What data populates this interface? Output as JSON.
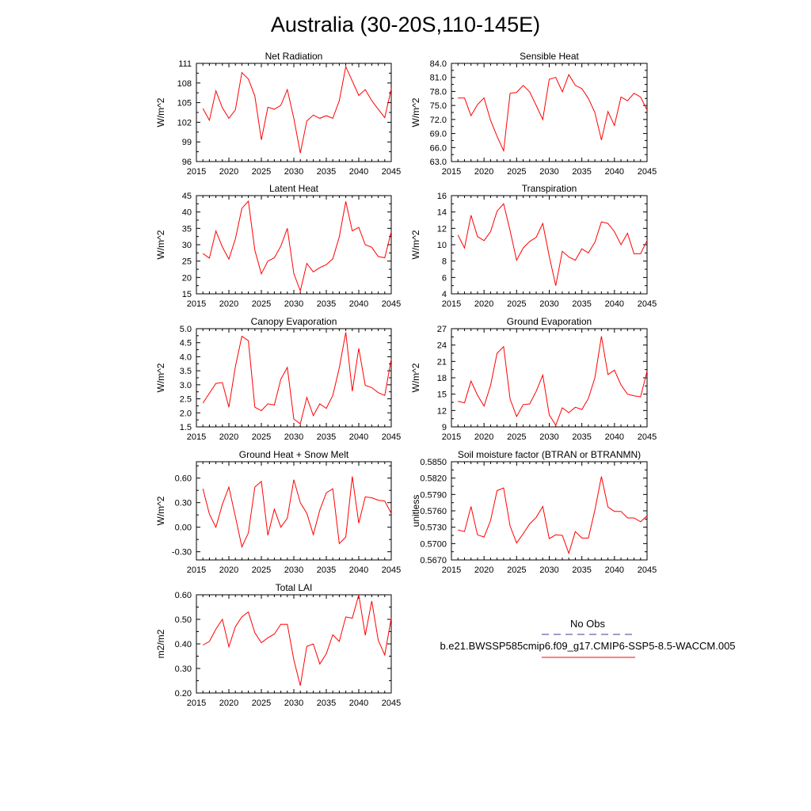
{
  "figure": {
    "title": "Australia (30-20S,110-145E)"
  },
  "legend": {
    "items": [
      {
        "label": "No Obs",
        "color": "#3c3c8c",
        "style": "dashed"
      },
      {
        "label": "b.e21.BWSSP585cmip6.f09_g17.CMIP6-SSP5-8.5-WACCM.005",
        "color": "#ff0000",
        "style": "solid"
      }
    ]
  },
  "chart_data": [
    {
      "type": "line",
      "title": "Net Radiation",
      "ylabel": "W/m^2",
      "xlim": [
        2015,
        2045
      ],
      "ylim": [
        96,
        111
      ],
      "x_ticks": [
        2015,
        2020,
        2025,
        2030,
        2035,
        2040,
        2045
      ],
      "y_ticks": [
        96,
        99,
        102,
        105,
        108,
        111
      ],
      "y_tick_labels": [
        "96",
        "99",
        "102",
        "105",
        "108",
        "111"
      ],
      "series": [
        {
          "color": "#ff0000",
          "x": [
            2016,
            2017,
            2018,
            2019,
            2020,
            2021,
            2022,
            2023,
            2024,
            2025,
            2026,
            2027,
            2028,
            2029,
            2030,
            2031,
            2032,
            2033,
            2034,
            2035,
            2036,
            2037,
            2038,
            2039,
            2040,
            2041,
            2042,
            2043,
            2044,
            2045
          ],
          "values": [
            104.1,
            102.3,
            106.8,
            104.2,
            102.6,
            103.9,
            109.6,
            108.6,
            106.0,
            99.3,
            104.3,
            104.0,
            104.6,
            107.0,
            102.6,
            97.3,
            102.2,
            103.1,
            102.6,
            103.0,
            102.6,
            105.3,
            110.5,
            108.3,
            106.1,
            107.0,
            105.3,
            104.0,
            102.7,
            107.1
          ]
        }
      ]
    },
    {
      "type": "line",
      "title": "Sensible Heat",
      "ylabel": "W/m^2",
      "xlim": [
        2015,
        2045
      ],
      "ylim": [
        63,
        84
      ],
      "x_ticks": [
        2015,
        2020,
        2025,
        2030,
        2035,
        2040,
        2045
      ],
      "y_ticks": [
        63,
        66,
        69,
        72,
        75,
        78,
        81,
        84
      ],
      "y_tick_labels": [
        "63.0",
        "66.0",
        "69.0",
        "72.0",
        "75.0",
        "78.0",
        "81.0",
        "84.0"
      ],
      "series": [
        {
          "color": "#ff0000",
          "x": [
            2016,
            2017,
            2018,
            2019,
            2020,
            2021,
            2022,
            2023,
            2024,
            2025,
            2026,
            2027,
            2028,
            2029,
            2030,
            2031,
            2032,
            2033,
            2034,
            2035,
            2036,
            2037,
            2038,
            2039,
            2040,
            2041,
            2042,
            2043,
            2044,
            2045
          ],
          "values": [
            76.6,
            76.6,
            72.8,
            75.2,
            76.6,
            71.8,
            68.4,
            65.3,
            77.6,
            77.8,
            79.3,
            77.9,
            75.0,
            72.0,
            80.6,
            81.0,
            77.9,
            81.6,
            79.3,
            78.6,
            76.5,
            73.5,
            67.6,
            73.7,
            70.7,
            76.8,
            76.0,
            77.6,
            76.8,
            74.0
          ]
        }
      ]
    },
    {
      "type": "line",
      "title": "Latent Heat",
      "ylabel": "W/m^2",
      "xlim": [
        2015,
        2045
      ],
      "ylim": [
        15,
        45
      ],
      "x_ticks": [
        2015,
        2020,
        2025,
        2030,
        2035,
        2040,
        2045
      ],
      "y_ticks": [
        15,
        20,
        25,
        30,
        35,
        40,
        45
      ],
      "y_tick_labels": [
        "15",
        "20",
        "25",
        "30",
        "35",
        "40",
        "45"
      ],
      "series": [
        {
          "color": "#ff0000",
          "x": [
            2016,
            2017,
            2018,
            2019,
            2020,
            2021,
            2022,
            2023,
            2024,
            2025,
            2026,
            2027,
            2028,
            2029,
            2030,
            2031,
            2032,
            2033,
            2034,
            2035,
            2036,
            2037,
            2038,
            2039,
            2040,
            2041,
            2042,
            2043,
            2044,
            2045
          ],
          "values": [
            27.3,
            25.9,
            34.2,
            29.3,
            25.6,
            31.8,
            41.1,
            43.3,
            28.3,
            21.1,
            25.0,
            26.0,
            29.6,
            35.0,
            21.2,
            15.9,
            24.3,
            21.7,
            23.0,
            23.9,
            25.7,
            32.4,
            43.2,
            34.2,
            35.3,
            30.0,
            29.2,
            26.4,
            26.0,
            34.0
          ]
        }
      ]
    },
    {
      "type": "line",
      "title": "Transpiration",
      "ylabel": "W/m^2",
      "xlim": [
        2015,
        2045
      ],
      "ylim": [
        4,
        16
      ],
      "x_ticks": [
        2015,
        2020,
        2025,
        2030,
        2035,
        2040,
        2045
      ],
      "y_ticks": [
        4,
        6,
        8,
        10,
        12,
        14,
        16
      ],
      "y_tick_labels": [
        "4",
        "6",
        "8",
        "10",
        "12",
        "14",
        "16"
      ],
      "series": [
        {
          "color": "#ff0000",
          "x": [
            2016,
            2017,
            2018,
            2019,
            2020,
            2021,
            2022,
            2023,
            2024,
            2025,
            2026,
            2027,
            2028,
            2029,
            2030,
            2031,
            2032,
            2033,
            2034,
            2035,
            2036,
            2037,
            2038,
            2039,
            2040,
            2041,
            2042,
            2043,
            2044,
            2045
          ],
          "values": [
            11.2,
            9.6,
            13.6,
            11.0,
            10.5,
            11.6,
            14.1,
            15.0,
            11.7,
            8.1,
            9.6,
            10.4,
            10.9,
            12.6,
            8.6,
            5.0,
            9.2,
            8.5,
            8.1,
            9.5,
            9.0,
            10.3,
            12.8,
            12.6,
            11.6,
            10.0,
            11.4,
            8.9,
            8.9,
            10.5
          ]
        }
      ]
    },
    {
      "type": "line",
      "title": "Canopy Evaporation",
      "ylabel": "W/m^2",
      "xlim": [
        2015,
        2045
      ],
      "ylim": [
        1.5,
        5.0
      ],
      "x_ticks": [
        2015,
        2020,
        2025,
        2030,
        2035,
        2040,
        2045
      ],
      "y_ticks": [
        1.5,
        2.0,
        2.5,
        3.0,
        3.5,
        4.0,
        4.5,
        5.0
      ],
      "y_tick_labels": [
        "1.5",
        "2.0",
        "2.5",
        "3.0",
        "3.5",
        "4.0",
        "4.5",
        "5.0"
      ],
      "series": [
        {
          "color": "#ff0000",
          "x": [
            2016,
            2017,
            2018,
            2019,
            2020,
            2021,
            2022,
            2023,
            2024,
            2025,
            2026,
            2027,
            2028,
            2029,
            2030,
            2031,
            2032,
            2033,
            2034,
            2035,
            2036,
            2037,
            2038,
            2039,
            2040,
            2041,
            2042,
            2043,
            2044,
            2045
          ],
          "values": [
            2.35,
            2.7,
            3.05,
            3.08,
            2.2,
            3.65,
            4.73,
            4.57,
            2.2,
            2.08,
            2.32,
            2.28,
            3.2,
            3.62,
            1.78,
            1.61,
            2.55,
            1.9,
            2.32,
            2.16,
            2.62,
            3.6,
            4.87,
            2.77,
            4.3,
            2.98,
            2.9,
            2.72,
            2.62,
            3.92
          ]
        }
      ]
    },
    {
      "type": "line",
      "title": "Ground Evaporation",
      "ylabel": "W/m^2",
      "xlim": [
        2015,
        2045
      ],
      "ylim": [
        9,
        27
      ],
      "x_ticks": [
        2015,
        2020,
        2025,
        2030,
        2035,
        2040,
        2045
      ],
      "y_ticks": [
        9,
        12,
        15,
        18,
        21,
        24,
        27
      ],
      "y_tick_labels": [
        "9",
        "12",
        "15",
        "18",
        "21",
        "24",
        "27"
      ],
      "series": [
        {
          "color": "#ff0000",
          "x": [
            2016,
            2017,
            2018,
            2019,
            2020,
            2021,
            2022,
            2023,
            2024,
            2025,
            2026,
            2027,
            2028,
            2029,
            2030,
            2031,
            2032,
            2033,
            2034,
            2035,
            2036,
            2037,
            2038,
            2039,
            2040,
            2041,
            2042,
            2043,
            2044,
            2045
          ],
          "values": [
            13.7,
            13.4,
            17.4,
            14.8,
            12.8,
            16.6,
            22.5,
            23.7,
            14.1,
            10.9,
            13.1,
            13.2,
            15.5,
            18.5,
            11.2,
            9.3,
            12.5,
            11.6,
            12.6,
            12.2,
            14.2,
            18.0,
            25.6,
            18.6,
            19.4,
            16.7,
            15.0,
            14.7,
            14.5,
            19.2
          ]
        }
      ]
    },
    {
      "type": "line",
      "title": "Ground Heat + Snow Melt",
      "ylabel": "W/m^2",
      "xlim": [
        2015,
        2045
      ],
      "ylim": [
        -0.4,
        0.8
      ],
      "x_ticks": [
        2015,
        2020,
        2025,
        2030,
        2035,
        2040,
        2045
      ],
      "y_ticks": [
        -0.3,
        0.0,
        0.3,
        0.6
      ],
      "y_tick_labels": [
        "-0.30",
        "0.00",
        "0.30",
        "0.60"
      ],
      "series": [
        {
          "color": "#ff0000",
          "x": [
            2016,
            2017,
            2018,
            2019,
            2020,
            2021,
            2022,
            2023,
            2024,
            2025,
            2026,
            2027,
            2028,
            2029,
            2030,
            2031,
            2032,
            2033,
            2034,
            2035,
            2036,
            2037,
            2038,
            2039,
            2040,
            2041,
            2042,
            2043,
            2044,
            2045
          ],
          "values": [
            0.47,
            0.16,
            0.0,
            0.28,
            0.49,
            0.13,
            -0.24,
            -0.07,
            0.49,
            0.56,
            -0.1,
            0.22,
            0.0,
            0.11,
            0.58,
            0.3,
            0.17,
            -0.09,
            0.21,
            0.42,
            0.47,
            -0.2,
            -0.12,
            0.62,
            0.05,
            0.37,
            0.36,
            0.33,
            0.32,
            0.17
          ]
        }
      ]
    },
    {
      "type": "line",
      "title": "Soil moisture factor (BTRAN or BTRANMN)",
      "ylabel": "unitless",
      "xlim": [
        2015,
        2045
      ],
      "ylim": [
        0.567,
        0.585
      ],
      "x_ticks": [
        2015,
        2020,
        2025,
        2030,
        2035,
        2040,
        2045
      ],
      "y_ticks": [
        0.567,
        0.57,
        0.573,
        0.576,
        0.579,
        0.582,
        0.585
      ],
      "y_tick_labels": [
        "0.5670",
        "0.5700",
        "0.5730",
        "0.5760",
        "0.5790",
        "0.5820",
        "0.5850"
      ],
      "series": [
        {
          "color": "#ff0000",
          "x": [
            2016,
            2017,
            2018,
            2019,
            2020,
            2021,
            2022,
            2023,
            2024,
            2025,
            2026,
            2027,
            2028,
            2029,
            2030,
            2031,
            2032,
            2033,
            2034,
            2035,
            2036,
            2037,
            2038,
            2039,
            2040,
            2041,
            2042,
            2043,
            2044,
            2045
          ],
          "values": [
            0.5725,
            0.5722,
            0.5768,
            0.5716,
            0.5712,
            0.5742,
            0.5797,
            0.5802,
            0.5732,
            0.5701,
            0.5718,
            0.5736,
            0.5748,
            0.5768,
            0.5709,
            0.5716,
            0.5715,
            0.5682,
            0.5722,
            0.571,
            0.571,
            0.5761,
            0.5823,
            0.5767,
            0.5759,
            0.5759,
            0.5747,
            0.5747,
            0.574,
            0.5751
          ]
        }
      ]
    },
    {
      "type": "line",
      "title": "Total LAI",
      "ylabel": "m2/m2",
      "xlim": [
        2015,
        2045
      ],
      "ylim": [
        0.2,
        0.6
      ],
      "x_ticks": [
        2015,
        2020,
        2025,
        2030,
        2035,
        2040,
        2045
      ],
      "y_ticks": [
        0.2,
        0.3,
        0.4,
        0.5,
        0.6
      ],
      "y_tick_labels": [
        "0.20",
        "0.30",
        "0.40",
        "0.50",
        "0.60"
      ],
      "series": [
        {
          "color": "#ff0000",
          "x": [
            2016,
            2017,
            2018,
            2019,
            2020,
            2021,
            2022,
            2023,
            2024,
            2025,
            2026,
            2027,
            2028,
            2029,
            2030,
            2031,
            2032,
            2033,
            2034,
            2035,
            2036,
            2037,
            2038,
            2039,
            2040,
            2041,
            2042,
            2043,
            2044,
            2045
          ],
          "values": [
            0.395,
            0.41,
            0.46,
            0.5,
            0.388,
            0.47,
            0.51,
            0.53,
            0.445,
            0.405,
            0.425,
            0.44,
            0.48,
            0.48,
            0.335,
            0.23,
            0.39,
            0.4,
            0.318,
            0.36,
            0.437,
            0.41,
            0.51,
            0.505,
            0.6,
            0.435,
            0.575,
            0.415,
            0.355,
            0.505
          ]
        }
      ]
    }
  ]
}
